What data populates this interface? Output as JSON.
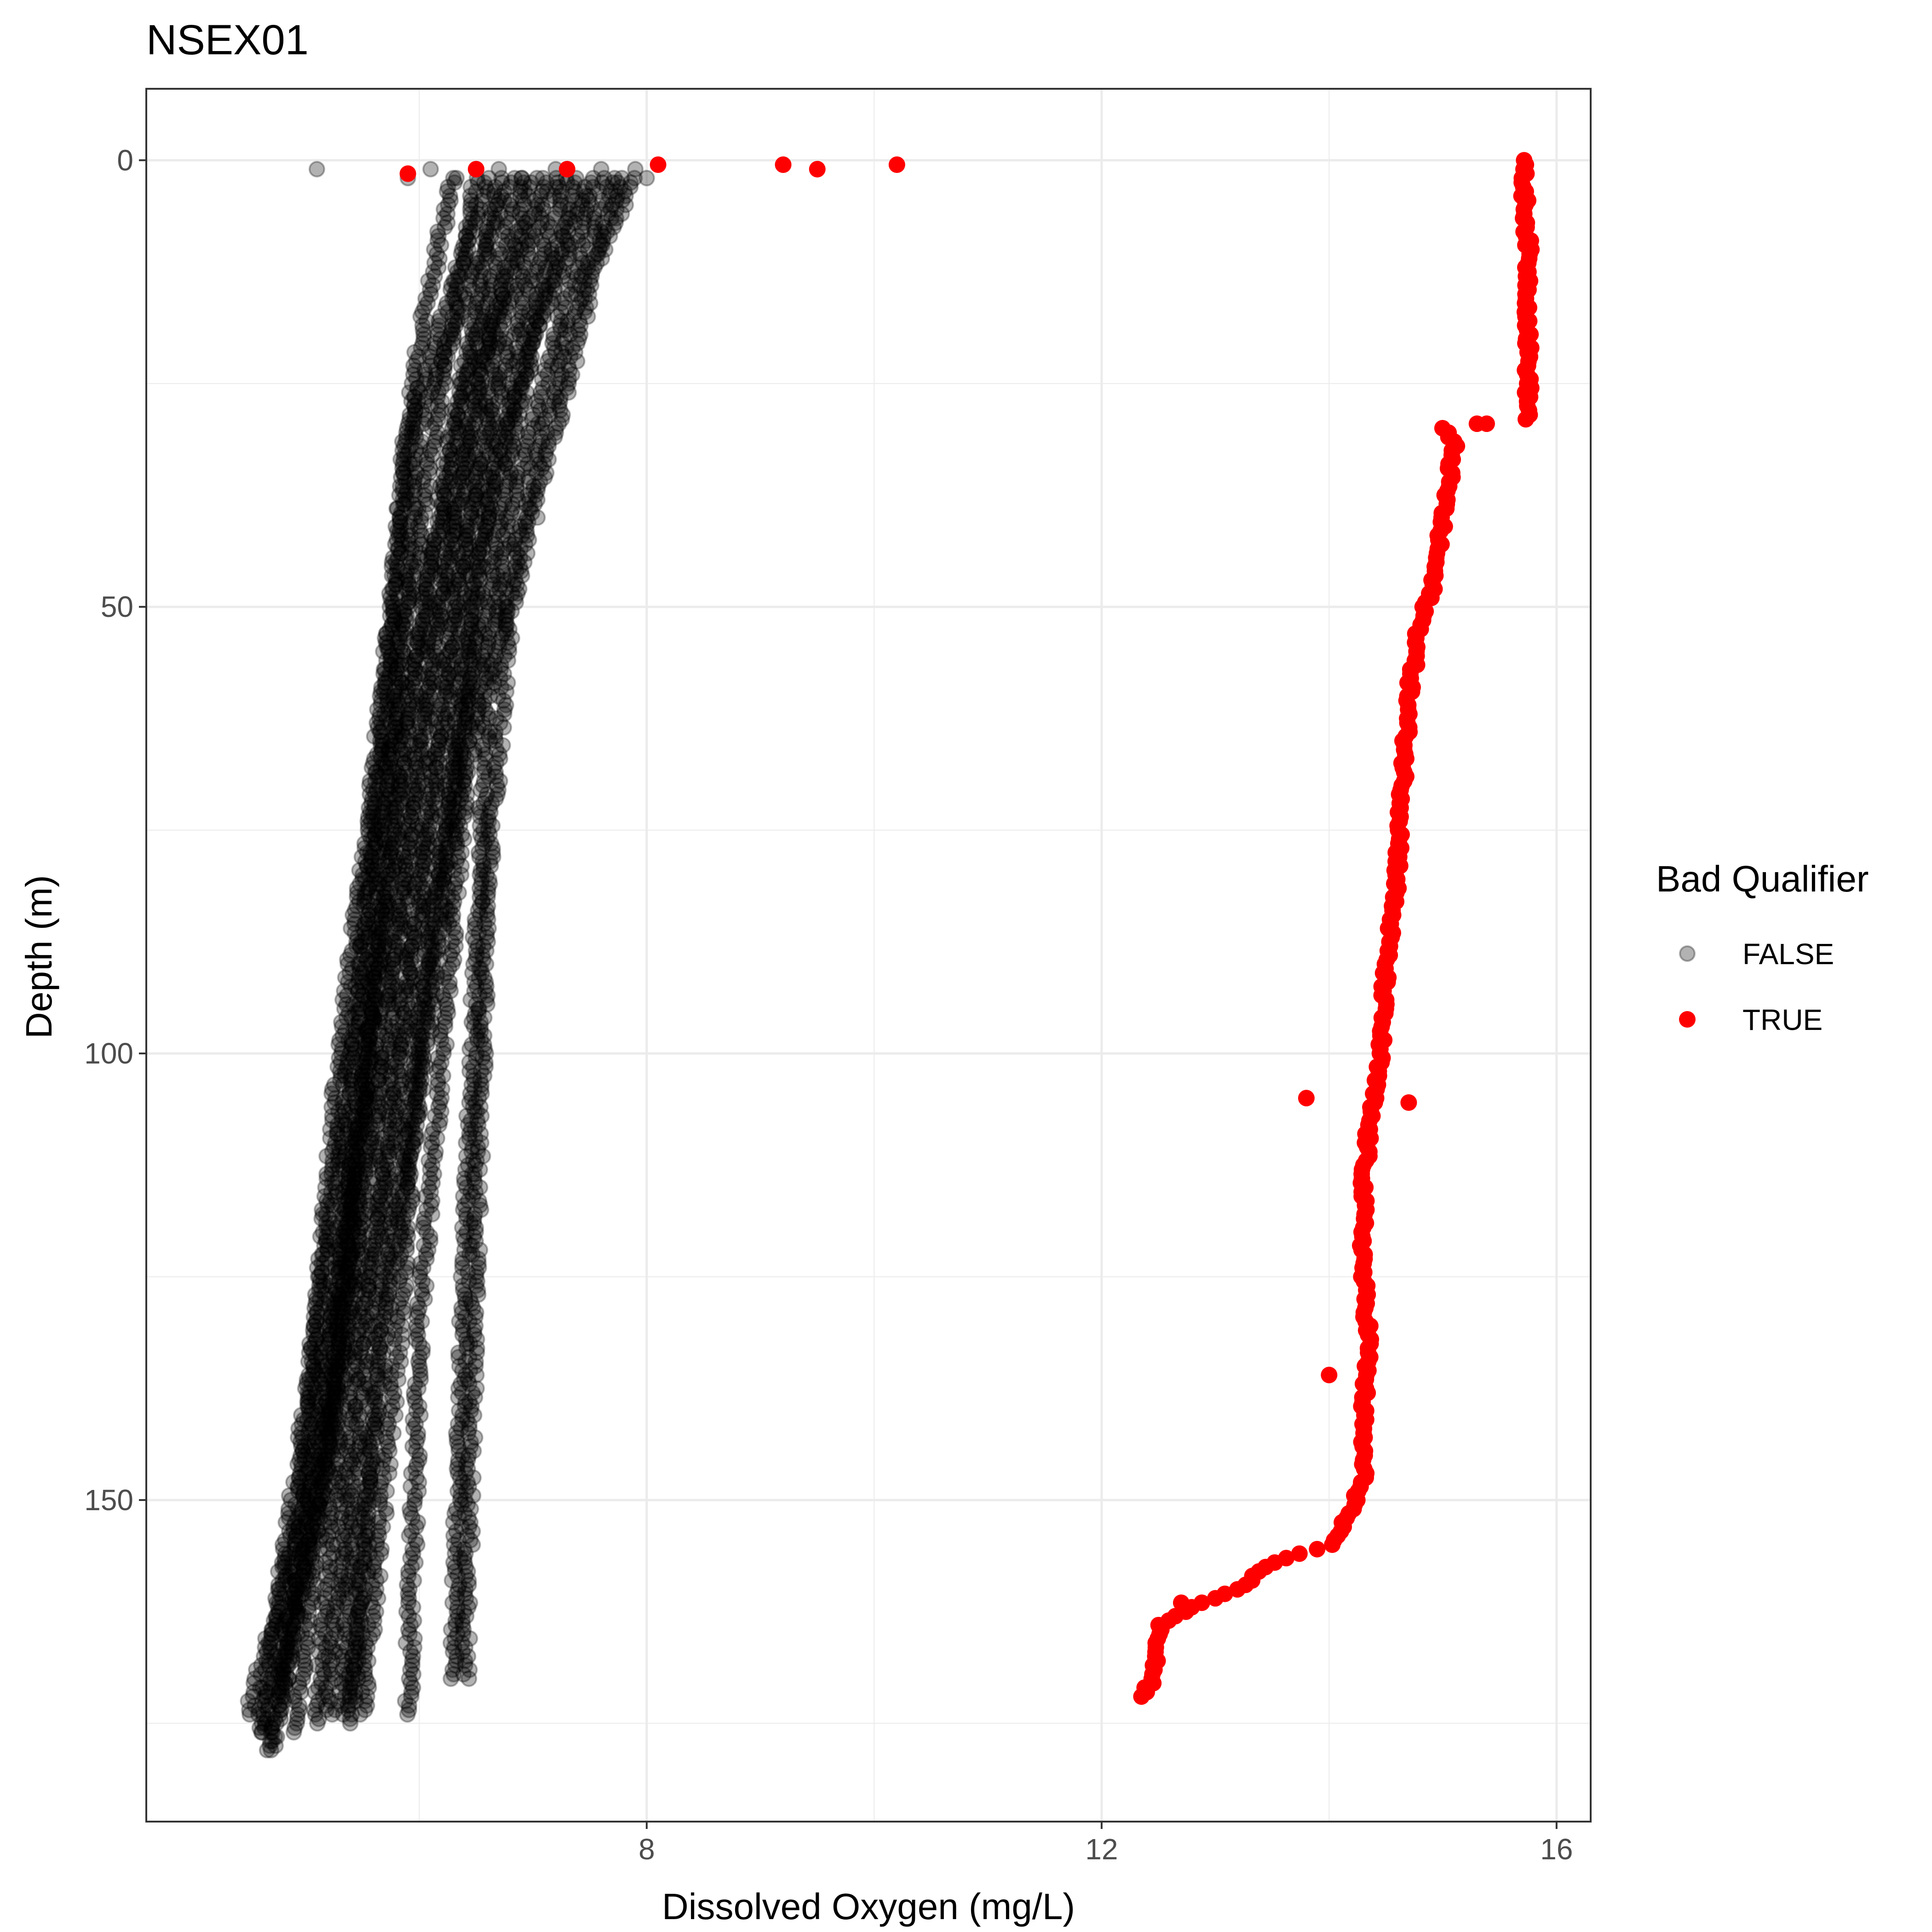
{
  "chart_data": {
    "type": "scatter",
    "title": "NSEX01",
    "xlabel": "Dissolved Oxygen (mg/L)",
    "ylabel": "Depth (m)",
    "xlim": [
      3.6,
      16.3
    ],
    "ylim": [
      -8,
      186
    ],
    "y_reversed": true,
    "x_ticks": [
      8,
      12,
      16
    ],
    "y_ticks": [
      0,
      50,
      100,
      150
    ],
    "grid": true,
    "legend": {
      "title": "Bad Qualifier",
      "position": "right",
      "entries": [
        {
          "label": "FALSE",
          "color": "#000000",
          "alpha": 0.3
        },
        {
          "label": "TRUE",
          "color": "#ff0000",
          "alpha": 1.0
        }
      ]
    },
    "series": [
      {
        "name": "FALSE",
        "color": "#000000",
        "alpha": 0.3,
        "profiles": [
          {
            "depth": [
              2,
              30,
              60,
              90,
              120,
              150,
              174
            ],
            "oxygen": [
              6.6,
              5.9,
              5.7,
              5.5,
              5.3,
              5.0,
              4.5
            ]
          },
          {
            "depth": [
              2,
              30,
              60,
              90,
              120,
              150,
              176
            ],
            "oxygen": [
              6.8,
              6.0,
              5.8,
              5.6,
              5.4,
              5.1,
              4.6
            ]
          },
          {
            "depth": [
              2,
              25,
              55,
              85,
              115,
              145,
              178
            ],
            "oxygen": [
              6.9,
              6.4,
              6.0,
              5.7,
              5.4,
              5.2,
              4.7
            ]
          },
          {
            "depth": [
              2,
              25,
              55,
              85,
              115,
              145,
              176
            ],
            "oxygen": [
              7.0,
              6.5,
              6.1,
              5.8,
              5.5,
              5.2,
              4.9
            ]
          },
          {
            "depth": [
              2,
              20,
              50,
              80,
              110,
              140,
              175
            ],
            "oxygen": [
              7.1,
              6.6,
              6.2,
              5.9,
              5.6,
              5.3,
              5.1
            ]
          },
          {
            "depth": [
              2,
              20,
              50,
              80,
              110,
              140,
              174
            ],
            "oxygen": [
              7.2,
              6.7,
              6.3,
              6.0,
              5.7,
              5.4,
              5.2
            ]
          },
          {
            "depth": [
              2,
              20,
              45,
              75,
              105,
              135,
              174
            ],
            "oxygen": [
              7.3,
              6.8,
              6.4,
              6.1,
              5.8,
              5.5,
              5.3
            ]
          },
          {
            "depth": [
              2,
              20,
              45,
              75,
              105,
              135,
              173
            ],
            "oxygen": [
              7.4,
              6.9,
              6.5,
              6.2,
              5.9,
              5.6,
              5.4
            ]
          },
          {
            "depth": [
              2,
              15,
              40,
              70,
              100,
              135,
              174
            ],
            "oxygen": [
              7.5,
              7.1,
              6.6,
              6.3,
              6.0,
              5.8,
              5.5
            ]
          },
          {
            "depth": [
              2,
              15,
              40,
              70,
              100,
              130,
              174
            ],
            "oxygen": [
              7.7,
              7.3,
              6.8,
              6.4,
              6.2,
              6.0,
              5.9
            ]
          },
          {
            "depth": [
              2,
              15,
              35,
              60,
              90,
              125,
              170
            ],
            "oxygen": [
              7.8,
              7.4,
              7.0,
              6.6,
              6.5,
              6.4,
              6.3
            ]
          },
          {
            "depth": [
              2,
              10,
              30,
              50,
              80,
              120,
              170
            ],
            "oxygen": [
              7.9,
              7.6,
              7.2,
              6.8,
              6.6,
              6.5,
              6.4
            ]
          },
          {
            "depth": [
              2,
              20,
              45,
              70,
              100,
              130,
              172
            ],
            "oxygen": [
              6.3,
              6.0,
              5.8,
              5.6,
              5.3,
              5.1,
              4.8
            ]
          },
          {
            "depth": [
              2,
              25,
              50,
              80,
              110,
              140,
              176
            ],
            "oxygen": [
              6.5,
              6.2,
              5.9,
              5.6,
              5.3,
              5.0,
              4.6
            ]
          },
          {
            "depth": [
              2,
              30,
              60,
              95,
              125,
              155,
              178
            ],
            "oxygen": [
              6.7,
              6.3,
              5.9,
              5.6,
              5.3,
              5.0,
              4.7
            ]
          },
          {
            "depth": [
              2,
              20,
              40,
              65,
              95,
              130,
              175
            ],
            "oxygen": [
              7.6,
              7.0,
              6.7,
              6.4,
              6.1,
              5.7,
              5.4
            ]
          }
        ],
        "surface_points": [
          [
            5.1,
            1
          ],
          [
            5.9,
            2
          ],
          [
            6.1,
            1
          ],
          [
            6.3,
            2
          ],
          [
            6.5,
            1
          ],
          [
            6.7,
            1
          ],
          [
            6.9,
            2
          ],
          [
            7.2,
            1
          ],
          [
            7.6,
            1
          ],
          [
            7.9,
            1
          ],
          [
            8.0,
            2
          ],
          [
            9.2,
            0.5
          ]
        ]
      },
      {
        "name": "TRUE",
        "color": "#ff0000",
        "alpha": 1.0,
        "points_main": [
          [
            15.7,
            0
          ],
          [
            15.75,
            10
          ],
          [
            15.75,
            20
          ],
          [
            15.75,
            29
          ],
          [
            15.0,
            30
          ],
          [
            15.1,
            32
          ],
          [
            15.0,
            40
          ],
          [
            14.9,
            48
          ],
          [
            14.8,
            52
          ],
          [
            14.7,
            60
          ],
          [
            14.65,
            70
          ],
          [
            14.6,
            80
          ],
          [
            14.5,
            90
          ],
          [
            14.45,
            100
          ],
          [
            14.35,
            108
          ],
          [
            14.3,
            115
          ],
          [
            14.3,
            125
          ],
          [
            14.35,
            132
          ],
          [
            14.3,
            140
          ],
          [
            14.3,
            148
          ],
          [
            14.2,
            151
          ],
          [
            14.0,
            155
          ],
          [
            13.5,
            157
          ],
          [
            13.2,
            160
          ],
          [
            12.8,
            162
          ],
          [
            12.5,
            164
          ],
          [
            12.5,
            166
          ],
          [
            12.45,
            170
          ],
          [
            12.35,
            172
          ]
        ],
        "outliers": [
          [
            15.3,
            29.5
          ],
          [
            13.8,
            105
          ],
          [
            14.7,
            105.5
          ],
          [
            14.0,
            136
          ],
          [
            12.7,
            161.5
          ]
        ],
        "surface_points": [
          [
            5.9,
            1.5
          ],
          [
            6.5,
            1
          ],
          [
            7.3,
            1
          ],
          [
            8.1,
            0.5
          ],
          [
            9.2,
            0.5
          ],
          [
            9.5,
            1
          ],
          [
            10.2,
            0.5
          ]
        ]
      }
    ]
  }
}
